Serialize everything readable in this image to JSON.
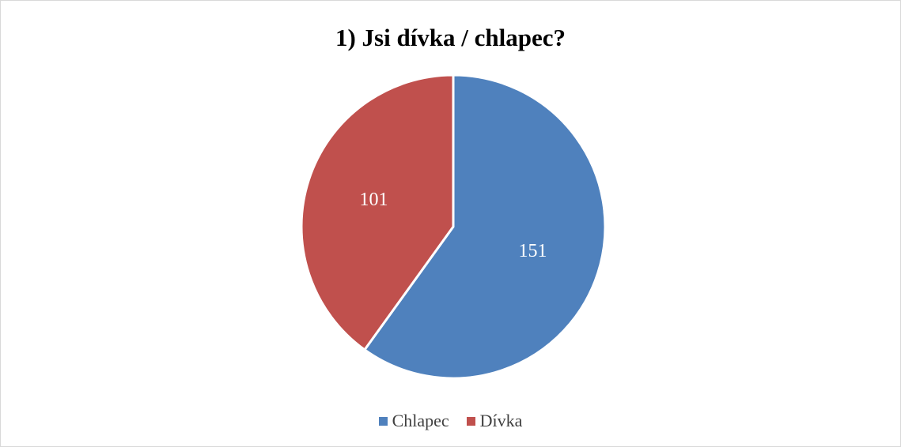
{
  "chart_data": {
    "type": "pie",
    "title": "1) Jsi dívka / chlapec?",
    "categories": [
      "Chlapec",
      "Dívka"
    ],
    "values": [
      151,
      101
    ],
    "colors": [
      "#4f81bd",
      "#c0504d"
    ],
    "data_labels": [
      "151",
      "101"
    ],
    "legend_position": "bottom",
    "start_angle_deg": 0,
    "direction": "clockwise"
  }
}
